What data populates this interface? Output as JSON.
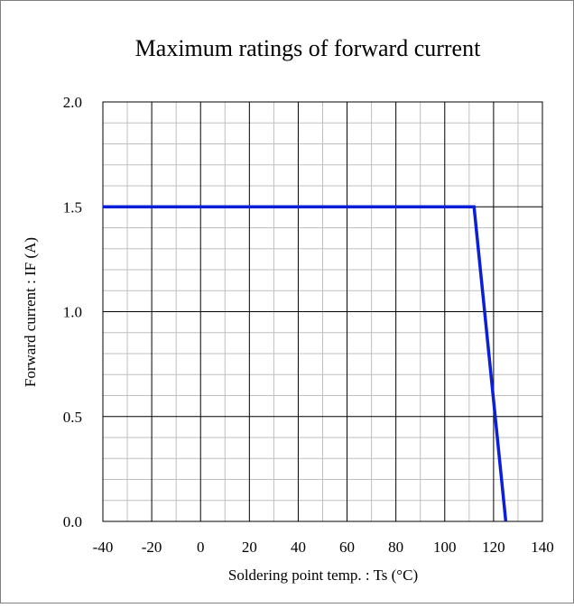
{
  "chart_data": {
    "type": "line",
    "title": "Maximum ratings of forward current",
    "xlabel": "Soldering point temp. : Ts (°C)",
    "ylabel": "Forward current : IF (A)",
    "xlim": [
      -40,
      140
    ],
    "ylim": [
      0.0,
      2.0
    ],
    "x_ticks": [
      -40,
      -20,
      0,
      20,
      40,
      60,
      80,
      100,
      120,
      140
    ],
    "x_tick_labels": [
      "-40",
      "-20",
      "0",
      "20",
      "40",
      "60",
      "80",
      "100",
      "120",
      "140"
    ],
    "y_ticks": [
      0.0,
      0.5,
      1.0,
      1.5,
      2.0
    ],
    "y_tick_labels": [
      "0.0",
      "0.5",
      "1.0",
      "1.5",
      "2.0"
    ],
    "x_minor_step": 10,
    "y_minor_step": 0.1,
    "grid": true,
    "legend": "none",
    "series": [
      {
        "x": [
          -40,
          112,
          125
        ],
        "y": [
          1.5,
          1.5,
          0.0
        ],
        "color": "#0a1fd8"
      }
    ],
    "colors": {
      "major_grid": "#000000",
      "minor_grid": "#bfbfbf",
      "frame": "#7f7f7f"
    }
  }
}
